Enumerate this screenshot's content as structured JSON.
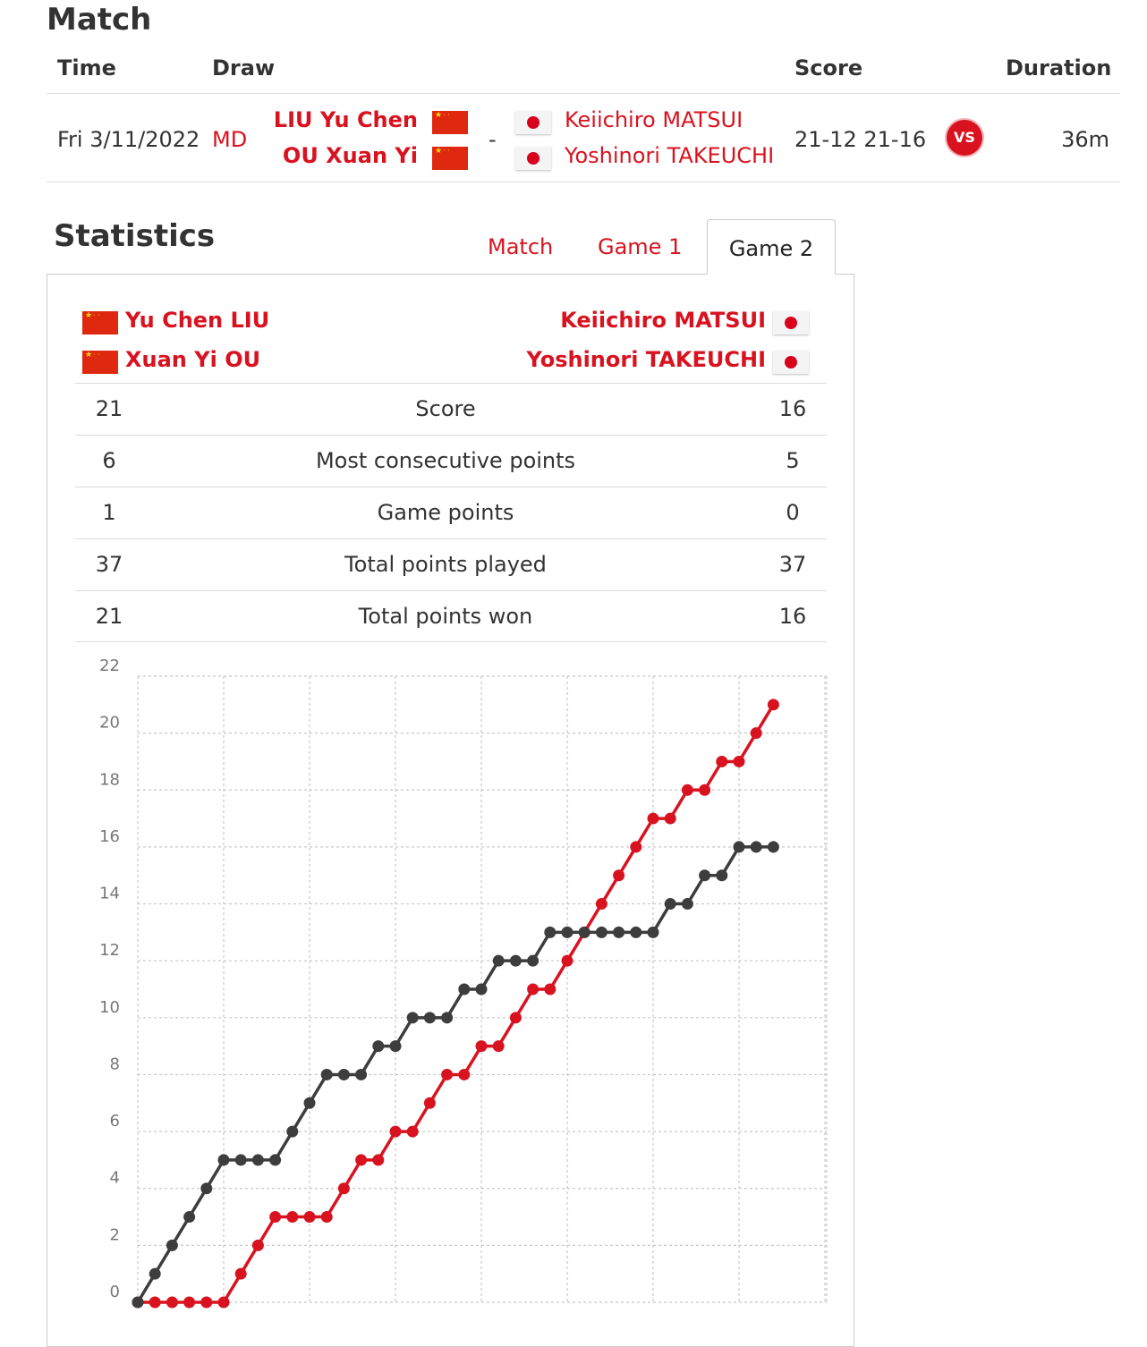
{
  "match_section": {
    "title": "Match",
    "headers": {
      "time": "Time",
      "draw": "Draw",
      "score": "Score",
      "duration": "Duration"
    },
    "row": {
      "time": "Fri 3/11/2022",
      "draw": "MD",
      "team1": [
        "LIU Yu Chen",
        "OU Xuan Yi"
      ],
      "separator": "-",
      "team2": [
        "Keiichiro MATSUI",
        "Yoshinori TAKEUCHI"
      ],
      "score": "21-12 21-16",
      "vs_label": "VS",
      "duration": "36m"
    }
  },
  "statistics": {
    "title": "Statistics",
    "tabs": [
      "Match",
      "Game 1",
      "Game 2"
    ],
    "active_tab": "Game 2",
    "team1": [
      "Yu Chen LIU",
      "Xuan Yi OU"
    ],
    "team2": [
      "Keiichiro MATSUI",
      "Yoshinori TAKEUCHI"
    ],
    "rows": [
      {
        "left": "21",
        "label": "Score",
        "right": "16"
      },
      {
        "left": "6",
        "label": "Most consecutive points",
        "right": "5"
      },
      {
        "left": "1",
        "label": "Game points",
        "right": "0"
      },
      {
        "left": "37",
        "label": "Total points played",
        "right": "37"
      },
      {
        "left": "21",
        "label": "Total points won",
        "right": "16"
      }
    ]
  },
  "colors": {
    "accent": "#d8131f",
    "dark_series": "#3d3d3d",
    "grid": "#c8c8c8"
  },
  "chart_data": {
    "type": "line",
    "ylim": [
      0,
      22
    ],
    "yticks": [
      0,
      2,
      4,
      6,
      8,
      10,
      12,
      14,
      16,
      18,
      20,
      22
    ],
    "grid": true,
    "x_count": 38,
    "series": [
      {
        "color": "#d8131f",
        "values": [
          0,
          0,
          0,
          0,
          0,
          0,
          1,
          2,
          3,
          3,
          3,
          3,
          4,
          5,
          5,
          6,
          6,
          7,
          8,
          8,
          9,
          9,
          10,
          11,
          11,
          12,
          13,
          14,
          15,
          16,
          17,
          17,
          18,
          18,
          19,
          19,
          20,
          21
        ]
      },
      {
        "color": "#3d3d3d",
        "values": [
          0,
          1,
          2,
          3,
          4,
          5,
          5,
          5,
          5,
          6,
          7,
          8,
          8,
          8,
          9,
          9,
          10,
          10,
          10,
          11,
          11,
          12,
          12,
          12,
          13,
          13,
          13,
          13,
          13,
          13,
          13,
          14,
          14,
          15,
          15,
          16,
          16,
          16
        ]
      }
    ]
  }
}
